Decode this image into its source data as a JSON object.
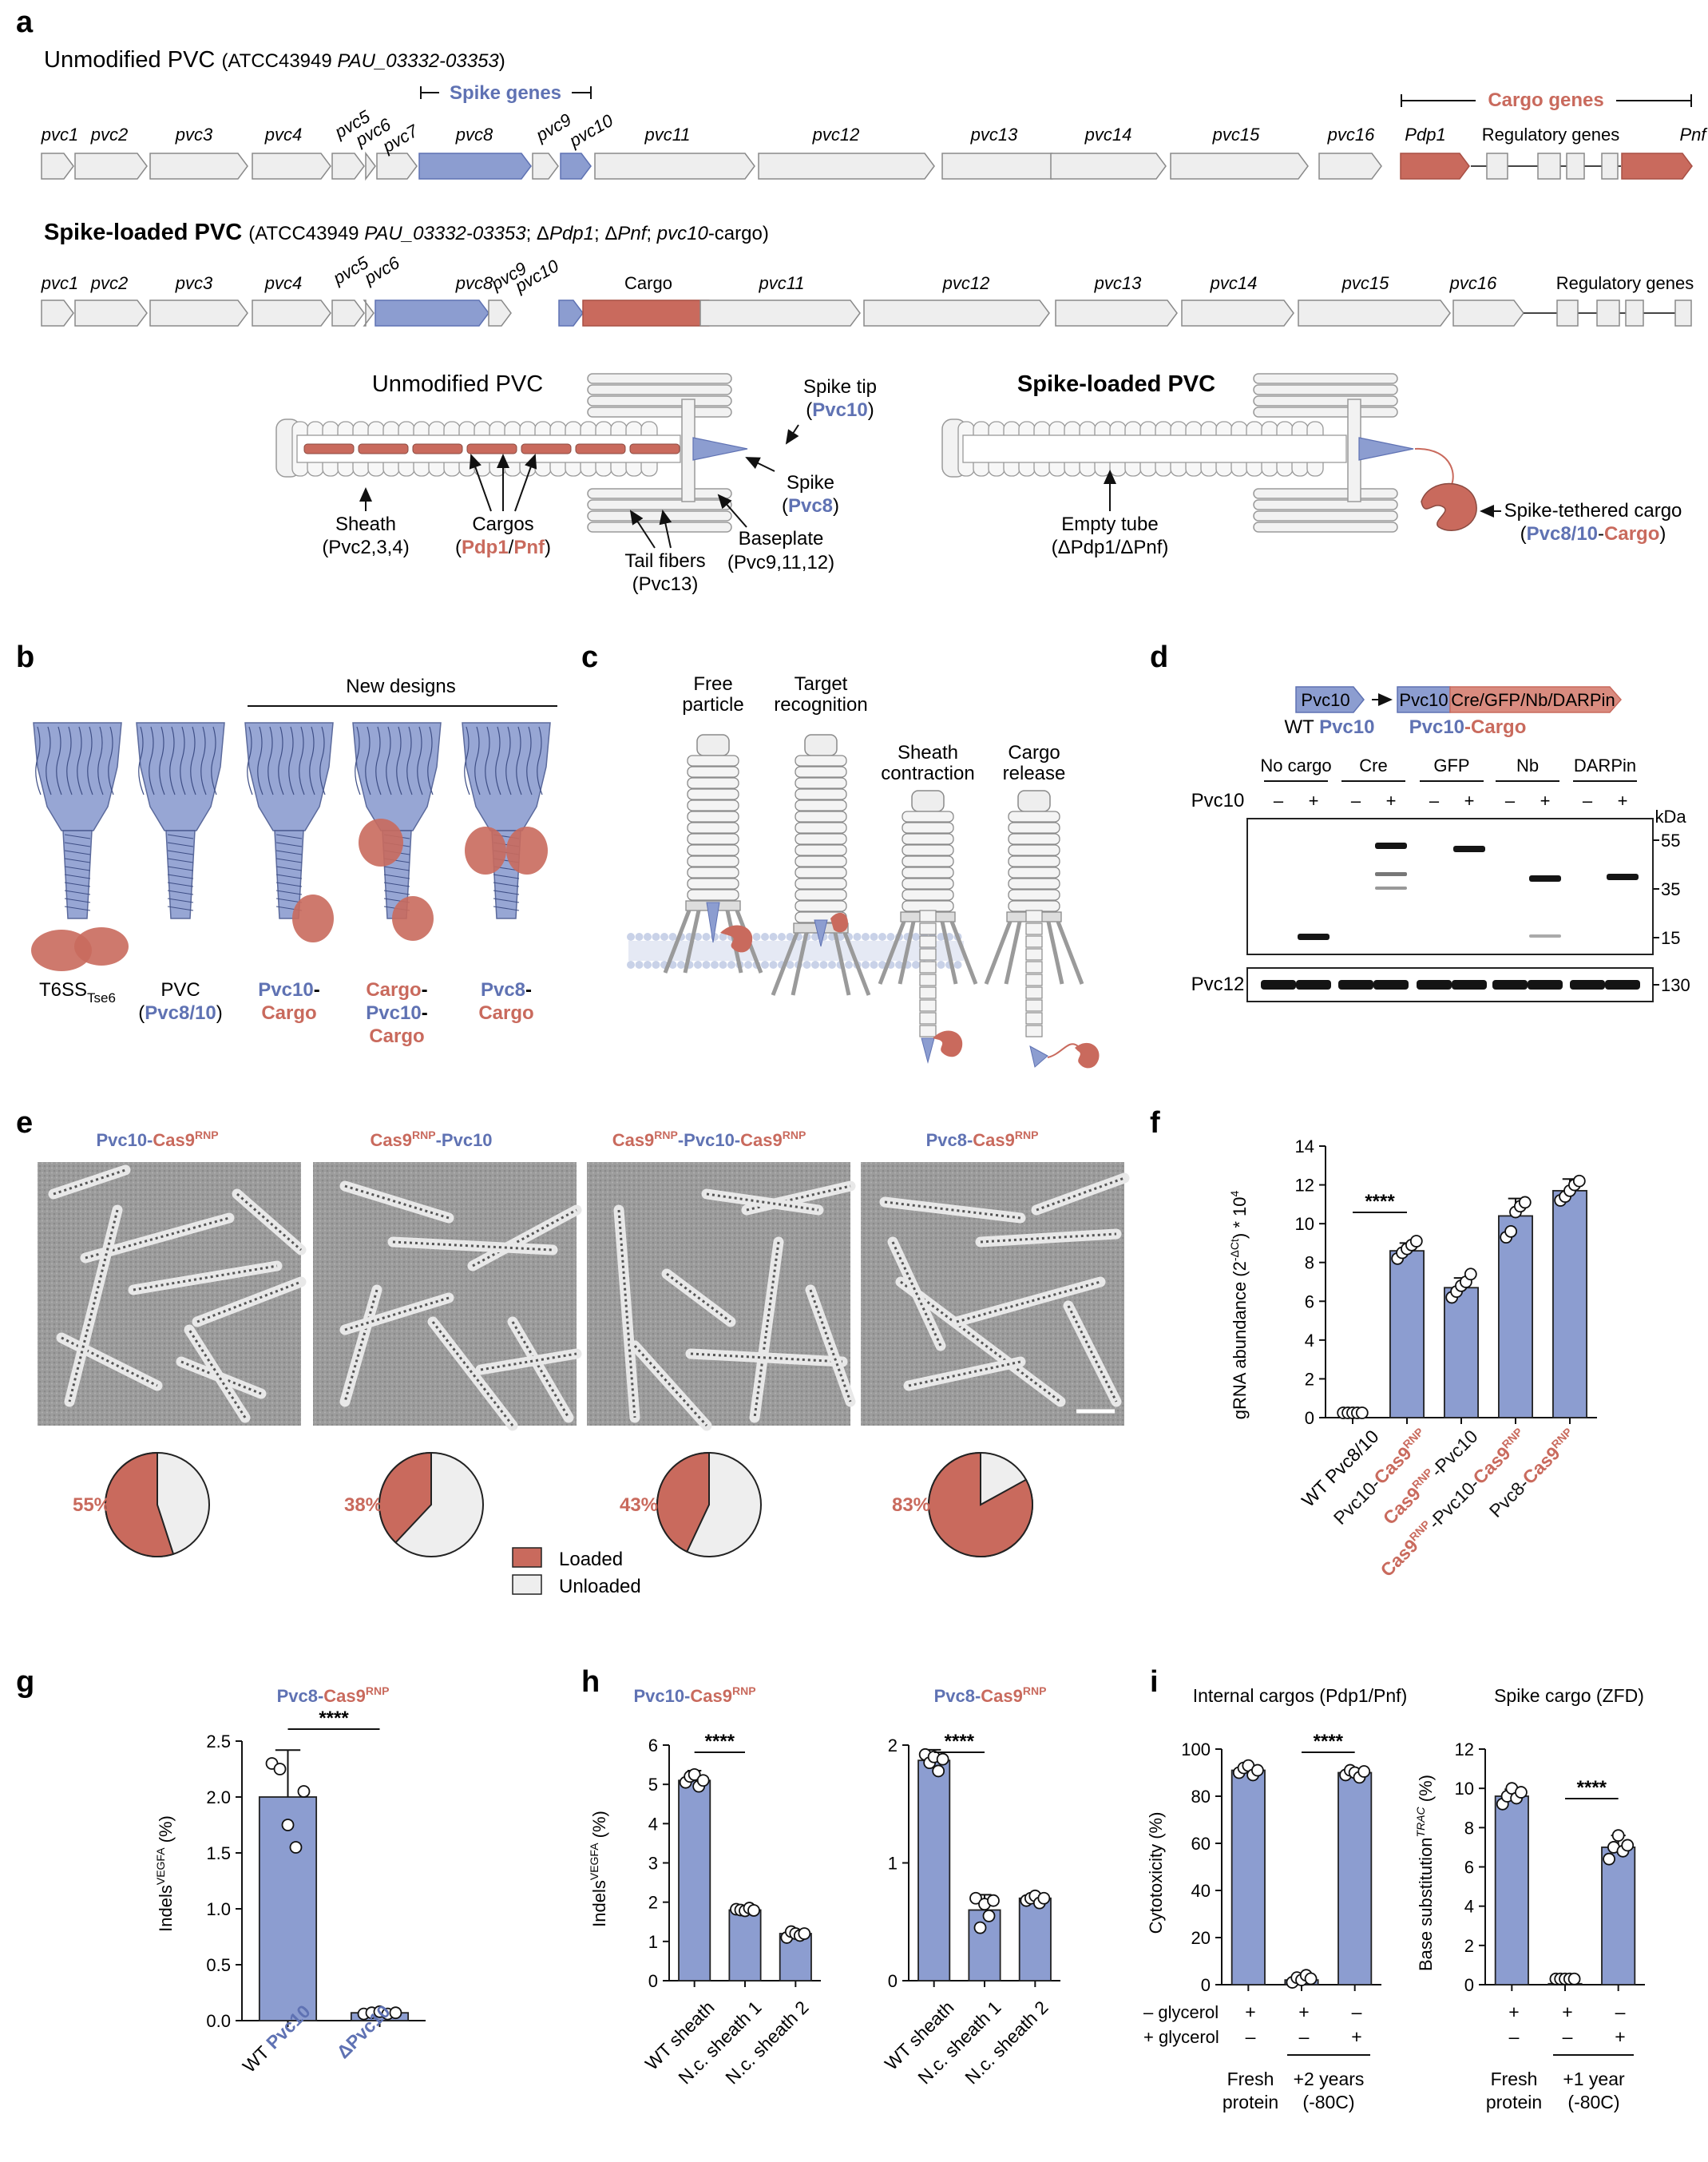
{
  "colors": {
    "blue": "#8c9dd0",
    "blue_dark": "#5f72b3",
    "red": "#c96a5d",
    "grey_fill": "#eeeeee",
    "grey_stroke": "#8a8a8a"
  },
  "panels": {
    "a": "a",
    "b": "b",
    "c": "c",
    "d": "d",
    "e": "e",
    "f": "f",
    "g": "g",
    "h": "h",
    "i": "i"
  },
  "panel_a": {
    "title1_main": "Unmodified PVC",
    "title1_strain": "(ATCC43949 ",
    "title1_locus": "PAU_03332-03353",
    "title1_close": ")",
    "spike_genes": "Spike genes",
    "cargo_genes": "Cargo genes",
    "row1_labels": [
      "pvc1",
      "pvc2",
      "pvc3",
      "pvc4",
      "pvc5",
      "pvc6",
      "pvc7",
      "pvc8",
      "pvc9",
      "pvc10",
      "pvc11",
      "pvc12",
      "pvc13",
      "pvc14",
      "pvc15",
      "pvc16",
      "Pdp1",
      "Regulatory genes",
      "Pnf"
    ],
    "title2_main": "Spike-loaded PVC",
    "title2_strain": "(ATCC43949 ",
    "title2_locus": "PAU_03332-03353",
    "title2_d1": "; Δ",
    "title2_pdp": "Pdp1",
    "title2_d2": "; Δ",
    "title2_pnf": "Pnf",
    "title2_sep": "; ",
    "title2_cargo": "pvc10",
    "title2_cargo_suffix": "-cargo)",
    "row2_labels": [
      "pvc1",
      "pvc2",
      "pvc3",
      "pvc4",
      "pvc5",
      "pvc6",
      "pvc8",
      "pvc9",
      "pvc10",
      "Cargo",
      "pvc11",
      "pvc12",
      "pvc13",
      "pvc14",
      "pvc15",
      "pvc16",
      "Regulatory genes"
    ],
    "left_title": "Unmodified PVC",
    "right_title": "Spike-loaded PVC",
    "spike_tip": "Spike tip",
    "spike_tip_protein": "Pvc10",
    "spike": "Spike",
    "spike_protein": "Pvc8",
    "sheath": "Sheath",
    "sheath_proteins": "(Pvc2,3,4)",
    "cargos": "Cargos",
    "cargos_pdp1": "Pdp1",
    "cargos_pnf": "Pnf",
    "baseplate": "Baseplate",
    "baseplate_proteins": "(Pvc9,11,12)",
    "tail_fibers": "Tail fibers",
    "tail_fibers_protein": "(Pvc13)",
    "empty_tube": "Empty tube",
    "empty_tube_sub": "(ΔPdp1/ΔPnf)",
    "tethered": "Spike-tethered cargo",
    "tethered_pvc": "Pvc8/10",
    "tethered_cargo": "Cargo"
  },
  "panel_b": {
    "new_designs": "New designs",
    "t6ss": "T6SS",
    "t6ss_sub": "Tse6",
    "pvc": "PVC",
    "pvc_sub": "Pvc8/10",
    "d1a": "Pvc10",
    "d1b": "Cargo",
    "d2a": "Cargo",
    "d2b": "Pvc10",
    "d2c": "Cargo",
    "d3a": "Pvc8",
    "d3b": "Cargo"
  },
  "panel_c": {
    "s1a": "Free",
    "s1b": "particle",
    "s2a": "Target",
    "s2b": "recognition",
    "s3a": "Sheath",
    "s3b": "contraction",
    "s4a": "Cargo",
    "s4b": "release"
  },
  "panel_d": {
    "wt_box": "Pvc10",
    "fusion_box1": "Pvc10",
    "fusion_box2": "Cre/GFP/Nb/DARPin",
    "wt_label_a": "WT ",
    "wt_label_b": "Pvc10",
    "fusion_label_a": "Pvc10",
    "fusion_label_b": "-Cargo",
    "groups": [
      "No cargo",
      "Cre",
      "GFP",
      "Nb",
      "DARPin"
    ],
    "pvc10_row": "Pvc10",
    "minus": "–",
    "plus": "+",
    "kda": "kDa",
    "markers": [
      "55",
      "35",
      "15"
    ],
    "pvc12": "Pvc12",
    "marker130": "130"
  },
  "panel_e": {
    "titles": [
      {
        "a": "Pvc10-",
        "b": "Cas9",
        "sup": "RNP"
      },
      {
        "a": "Cas9",
        "sup": "RNP",
        "b": "-Pvc10"
      },
      {
        "a": "Cas9",
        "sup": "RNP",
        "b": "-Pvc10-",
        "c": "Cas9",
        "sup2": "RNP"
      },
      {
        "a": "Pvc8-",
        "b": "Cas9",
        "sup": "RNP"
      }
    ],
    "pcts": [
      "55%",
      "38%",
      "43%",
      "83%"
    ],
    "legend_loaded": "Loaded",
    "legend_unloaded": "Unloaded"
  },
  "chart_data": [
    {
      "panel": "f",
      "type": "bar",
      "categories": [
        "WT Pvc8/10",
        "Pvc10-Cas9RNP",
        "Cas9RNP-Pvc10",
        "Cas9RNP-Pvc10-Cas9RNP",
        "Pvc8-Cas9RNP"
      ],
      "values": [
        0.0,
        8.6,
        6.7,
        10.4,
        11.7
      ],
      "errors": [
        0,
        0.4,
        0.5,
        0.9,
        0.6
      ],
      "points": [
        [
          0,
          0,
          0,
          0,
          0
        ],
        [
          8.2,
          8.5,
          8.7,
          8.9,
          9.1
        ],
        [
          6.2,
          6.5,
          6.8,
          7.0,
          7.4
        ],
        [
          9.3,
          9.6,
          10.6,
          10.9,
          11.1
        ],
        [
          11.2,
          11.4,
          11.7,
          12.0,
          12.2
        ]
      ],
      "ylabel": "gRNA abundance (2^-ΔCt) * 10^4",
      "yticks": [
        0,
        2,
        4,
        6,
        8,
        10,
        12,
        14
      ],
      "ylim": [
        0,
        14
      ],
      "significance": "****"
    },
    {
      "panel": "g",
      "type": "bar",
      "title": "Pvc8-Cas9RNP",
      "categories": [
        "WT Pvc10",
        "ΔPvc10"
      ],
      "values": [
        2.0,
        0.07
      ],
      "errors": [
        0.42,
        0.02
      ],
      "points": [
        [
          2.3,
          2.25,
          1.75,
          1.55,
          2.05
        ],
        [
          0.06,
          0.07,
          0.08,
          0.06,
          0.07
        ]
      ],
      "ylabel": "Indels VEGFA (%)",
      "yticks": [
        0.0,
        0.5,
        1.0,
        1.5,
        2.0,
        2.5
      ],
      "ylim": [
        0,
        2.5
      ],
      "significance": "****"
    },
    {
      "panel": "h-left",
      "type": "bar",
      "title": "Pvc10-Cas9RNP",
      "categories": [
        "WT sheath",
        "N.c. sheath 1",
        "N.c. sheath 2"
      ],
      "values": [
        5.1,
        1.8,
        1.2
      ],
      "errors": [
        0.25,
        0.05,
        0.1
      ],
      "points": [
        [
          5.05,
          5.2,
          5.25,
          4.95,
          5.1
        ],
        [
          1.82,
          1.8,
          1.78,
          1.85,
          1.79
        ],
        [
          1.1,
          1.25,
          1.2,
          1.15,
          1.2
        ]
      ],
      "ylabel": "Indels VEGFA (%)",
      "yticks": [
        0,
        1,
        2,
        3,
        4,
        5,
        6
      ],
      "ylim": [
        0,
        6
      ],
      "significance": "****"
    },
    {
      "panel": "h-right",
      "type": "bar",
      "title": "Pvc8-Cas9RNP",
      "categories": [
        "WT sheath",
        "N.c. sheath 1",
        "N.c. sheath 2"
      ],
      "values": [
        1.87,
        0.6,
        0.7
      ],
      "errors": [
        0.09,
        0.13,
        0.04
      ],
      "points": [
        [
          1.92,
          1.85,
          1.9,
          1.78,
          1.88
        ],
        [
          0.7,
          0.45,
          0.65,
          0.55,
          0.68
        ],
        [
          0.68,
          0.7,
          0.72,
          0.66,
          0.7
        ]
      ],
      "ylabel": "Indels VEGFA (%)",
      "yticks": [
        0,
        1,
        2
      ],
      "ylim": [
        0,
        2
      ],
      "significance": "****"
    },
    {
      "panel": "i-left",
      "type": "bar",
      "title": "Internal cargos (Pdp1/Pnf)",
      "categories": [
        "Fresh protein",
        "+2 years (-80C) - glycerol",
        "+2 years (-80C) + glycerol"
      ],
      "values": [
        91,
        2,
        90
      ],
      "errors": [
        1.5,
        1.5,
        1.0
      ],
      "points": [
        [
          90,
          92,
          93,
          89,
          91
        ],
        [
          1,
          3,
          2,
          4,
          0.5
        ],
        [
          89,
          91,
          90,
          88,
          90.5
        ]
      ],
      "ylabel": "Cytotoxicity (%)",
      "yticks": [
        0,
        20,
        40,
        60,
        80,
        100
      ],
      "ylim": [
        0,
        100
      ],
      "significance": "****"
    },
    {
      "panel": "i-right",
      "type": "bar",
      "title": "Spike cargo (ZFD)",
      "categories": [
        "Fresh protein",
        "+1 year (-80C) - glycerol",
        "+1 year (-80C) + glycerol"
      ],
      "values": [
        9.6,
        0.05,
        7.0
      ],
      "errors": [
        0.35,
        0.02,
        0.6
      ],
      "points": [
        [
          9.2,
          9.6,
          10.0,
          9.5,
          9.8
        ],
        [
          0.05,
          0.05,
          0.05,
          0.05,
          0.05
        ],
        [
          6.4,
          7.0,
          7.6,
          6.8,
          7.1
        ]
      ],
      "ylabel": "Base substitution TRAC (%)",
      "yticks": [
        0,
        2,
        4,
        6,
        8,
        10,
        12
      ],
      "ylim": [
        0,
        12
      ],
      "significance": "****"
    }
  ],
  "axis_text": {
    "f_ylabel_a": "gRNA abundance (2",
    "f_ylabel_sup": "-ΔCt",
    "f_ylabel_b": ") * 10",
    "f_ylabel_sup2": "4",
    "f_ticks": [
      "0",
      "2",
      "4",
      "6",
      "8",
      "10",
      "12",
      "14"
    ],
    "f_cat1": "WT Pvc8/10",
    "f_cat2_a": "Pvc10-",
    "f_cat2_b": "Cas9",
    "f_cat2_sup": "RNP",
    "f_cat3_a": "Cas9",
    "f_cat3_sup": "RNP",
    "f_cat3_b": "-Pvc10",
    "f_cat4_a": "Cas9",
    "f_cat4_sup": "RNP",
    "f_cat4_b": "-Pvc10-",
    "f_cat4_c": "Cas9",
    "f_cat4_sup2": "RNP",
    "f_cat5_a": "Pvc8-",
    "f_cat5_b": "Cas9",
    "f_cat5_sup": "RNP",
    "g_title_a": "Pvc8-",
    "g_title_b": "Cas9",
    "g_title_sup": "RNP",
    "g_ylabel_a": "Indels",
    "g_ylabel_sup": "VEGFA",
    "g_ylabel_b": " (%)",
    "g_ticks": [
      "0.0",
      "0.5",
      "1.0",
      "1.5",
      "2.0",
      "2.5"
    ],
    "g_cat1_a": "WT ",
    "g_cat1_b": "Pvc10",
    "g_cat2_a": "Δ",
    "g_cat2_b": "Pvc10",
    "h1_title_a": "Pvc10-",
    "h1_title_b": "Cas9",
    "h1_title_sup": "RNP",
    "h2_title_a": "Pvc8-",
    "h2_title_b": "Cas9",
    "h2_title_sup": "RNP",
    "h_ylabel_a": "Indels",
    "h_ylabel_sup": "VEGFA",
    "h_ylabel_b": " (%)",
    "h1_ticks": [
      "0",
      "1",
      "2",
      "3",
      "4",
      "5",
      "6"
    ],
    "h2_ticks": [
      "0",
      "1",
      "2"
    ],
    "h_cats": [
      "WT sheath",
      "N.c. sheath 1",
      "N.c. sheath 2"
    ],
    "i1_title": "Internal cargos (Pdp1/Pnf)",
    "i2_title": "Spike cargo (ZFD)",
    "i1_ylabel": "Cytotoxicity (%)",
    "i2_ylabel_a": "Base substitution",
    "i2_ylabel_sup": "TRAC",
    "i2_ylabel_b": " (%)",
    "i1_ticks": [
      "0",
      "20",
      "40",
      "60",
      "80",
      "100"
    ],
    "i2_ticks": [
      "0",
      "2",
      "4",
      "6",
      "8",
      "10",
      "12"
    ],
    "minus_glycerol": "– glycerol",
    "plus_glycerol": "+ glycerol",
    "i1_row1": [
      "+",
      "+",
      "–"
    ],
    "i1_row2": [
      "–",
      "–",
      "+"
    ],
    "i1_fresh_a": "Fresh",
    "i1_fresh_b": "protein",
    "i1_aged_a": "+2 years",
    "i1_aged_b": "(-80C)",
    "i2_fresh_a": "Fresh",
    "i2_fresh_b": "protein",
    "i2_aged_a": "+1 year",
    "i2_aged_b": "(-80C)"
  }
}
